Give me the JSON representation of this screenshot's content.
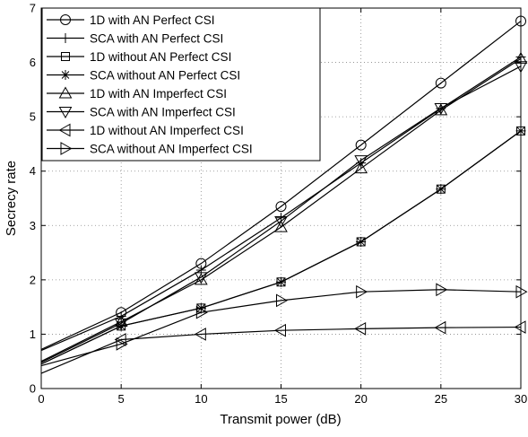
{
  "chart_data": {
    "type": "line",
    "title": "",
    "xlabel": "Transmit power (dB)",
    "ylabel": "Secrecy rate",
    "xlim": [
      0,
      30
    ],
    "ylim": [
      0,
      7
    ],
    "xticks": [
      "0",
      "5",
      "10",
      "15",
      "20",
      "25",
      "30"
    ],
    "yticks": [
      "0",
      "1",
      "2",
      "3",
      "4",
      "5",
      "6",
      "7"
    ],
    "grid": true,
    "legend_position": "top-left",
    "x": [
      0,
      5,
      10,
      15,
      20,
      25,
      30
    ],
    "series": [
      {
        "name": "1D with AN Perfect CSI",
        "marker": "circle",
        "values": [
          0.72,
          1.4,
          2.3,
          3.35,
          4.48,
          5.62,
          6.76
        ]
      },
      {
        "name": "SCA with AN Perfect CSI",
        "marker": "plus",
        "values": [
          0.7,
          1.33,
          2.18,
          3.14,
          4.15,
          5.15,
          6.1
        ]
      },
      {
        "name": "1D without AN Perfect CSI",
        "marker": "square",
        "values": [
          0.45,
          1.15,
          1.48,
          1.96,
          2.7,
          3.67,
          4.74
        ]
      },
      {
        "name": "SCA without AN Perfect CSI",
        "marker": "asterisk",
        "values": [
          0.45,
          1.15,
          1.48,
          1.96,
          2.7,
          3.67,
          4.74
        ]
      },
      {
        "name": "1D with AN Imperfect CSI",
        "marker": "triangle-up",
        "values": [
          0.5,
          1.23,
          2.0,
          2.97,
          4.05,
          5.12,
          6.07
        ]
      },
      {
        "name": "SCA with AN Imperfect CSI",
        "marker": "triangle-down",
        "values": [
          0.48,
          1.2,
          2.05,
          3.08,
          4.2,
          5.16,
          5.93
        ]
      },
      {
        "name": "1D without AN Imperfect CSI",
        "marker": "triangle-left",
        "values": [
          0.28,
          0.9,
          1.0,
          1.07,
          1.1,
          1.12,
          1.13
        ]
      },
      {
        "name": "SCA without AN Imperfect CSI",
        "marker": "triangle-right",
        "values": [
          0.42,
          0.82,
          1.4,
          1.62,
          1.78,
          1.82,
          1.78
        ]
      }
    ]
  }
}
